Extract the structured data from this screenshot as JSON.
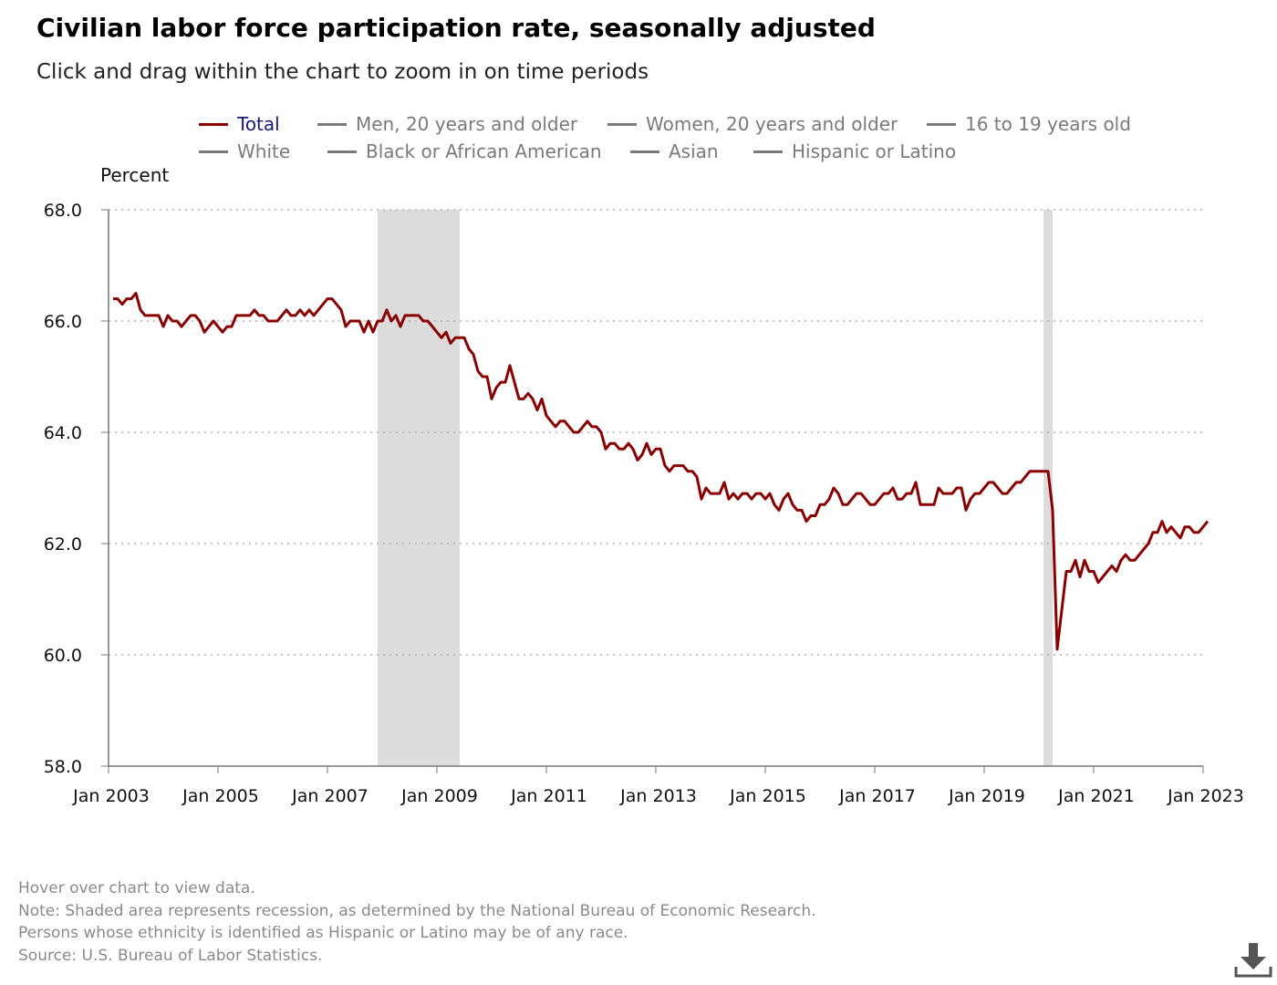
{
  "title": "Civilian labor force participation rate, seasonally adjusted",
  "subtitle": "Click and drag within the chart to zoom in on time periods",
  "legend": [
    {
      "label": "Total",
      "active": true
    },
    {
      "label": "Men, 20 years and older",
      "active": false
    },
    {
      "label": "Women, 20 years and older",
      "active": false
    },
    {
      "label": "16 to 19 years old",
      "active": false
    },
    {
      "label": "White",
      "active": false
    },
    {
      "label": "Black or African American",
      "active": false
    },
    {
      "label": "Asian",
      "active": false
    },
    {
      "label": "Hispanic or Latino",
      "active": false
    }
  ],
  "footer": {
    "line1": "Hover over chart to view data.",
    "line2": "Note: Shaded area represents recession, as determined by the National Bureau of Economic Research.",
    "line3": "Persons whose ethnicity is identified as Hispanic or Latino may be of any race.",
    "line4": "Source: U.S. Bureau of Labor Statistics."
  },
  "icons": {
    "download": "download-icon"
  },
  "colors": {
    "series": "#8b0000",
    "recession": "#dcdcdc",
    "grid": "#b0b0b0",
    "legend_inactive": "#7a7a7a",
    "legend_active_text": "#1a1a7a"
  },
  "chart_data": {
    "type": "line",
    "title": "Civilian labor force participation rate, seasonally adjusted",
    "ylabel": "Percent",
    "xlabel": "",
    "ylim": [
      58.0,
      68.0
    ],
    "yticks": [
      "58.0",
      "60.0",
      "62.0",
      "64.0",
      "66.0",
      "68.0"
    ],
    "xticks": [
      "Jan 2003",
      "Jan 2005",
      "Jan 2007",
      "Jan 2009",
      "Jan 2011",
      "Jan 2013",
      "Jan 2015",
      "Jan 2017",
      "Jan 2019",
      "Jan 2021",
      "Jan 2023"
    ],
    "x_start": "Jan 2003",
    "x_end": "Jan 2023",
    "grid": true,
    "legend_position": "top",
    "recessions": [
      {
        "start": "Dec 2007",
        "end": "Jun 2009"
      },
      {
        "start": "Feb 2020",
        "end": "Apr 2020"
      }
    ],
    "series": [
      {
        "name": "Total",
        "color": "#8b0000",
        "start": "Jan 2003",
        "frequency": "monthly",
        "values": [
          66.4,
          66.4,
          66.3,
          66.4,
          66.4,
          66.5,
          66.2,
          66.1,
          66.1,
          66.1,
          66.1,
          65.9,
          66.1,
          66.0,
          66.0,
          65.9,
          66.0,
          66.1,
          66.1,
          66.0,
          65.8,
          65.9,
          66.0,
          65.9,
          65.8,
          65.9,
          65.9,
          66.1,
          66.1,
          66.1,
          66.1,
          66.2,
          66.1,
          66.1,
          66.0,
          66.0,
          66.0,
          66.1,
          66.2,
          66.1,
          66.1,
          66.2,
          66.1,
          66.2,
          66.1,
          66.2,
          66.3,
          66.4,
          66.4,
          66.3,
          66.2,
          65.9,
          66.0,
          66.0,
          66.0,
          65.8,
          66.0,
          65.8,
          66.0,
          66.0,
          66.2,
          66.0,
          66.1,
          65.9,
          66.1,
          66.1,
          66.1,
          66.1,
          66.0,
          66.0,
          65.9,
          65.8,
          65.7,
          65.8,
          65.6,
          65.7,
          65.7,
          65.7,
          65.5,
          65.4,
          65.1,
          65.0,
          65.0,
          64.6,
          64.8,
          64.9,
          64.9,
          65.2,
          64.9,
          64.6,
          64.6,
          64.7,
          64.6,
          64.4,
          64.6,
          64.3,
          64.2,
          64.1,
          64.2,
          64.2,
          64.1,
          64.0,
          64.0,
          64.1,
          64.2,
          64.1,
          64.1,
          64.0,
          63.7,
          63.8,
          63.8,
          63.7,
          63.7,
          63.8,
          63.7,
          63.5,
          63.6,
          63.8,
          63.6,
          63.7,
          63.7,
          63.4,
          63.3,
          63.4,
          63.4,
          63.4,
          63.3,
          63.3,
          63.2,
          62.8,
          63.0,
          62.9,
          62.9,
          62.9,
          63.1,
          62.8,
          62.9,
          62.8,
          62.9,
          62.9,
          62.8,
          62.9,
          62.9,
          62.8,
          62.9,
          62.7,
          62.6,
          62.8,
          62.9,
          62.7,
          62.6,
          62.6,
          62.4,
          62.5,
          62.5,
          62.7,
          62.7,
          62.8,
          63.0,
          62.9,
          62.7,
          62.7,
          62.8,
          62.9,
          62.9,
          62.8,
          62.7,
          62.7,
          62.8,
          62.9,
          62.9,
          63.0,
          62.8,
          62.8,
          62.9,
          62.9,
          63.1,
          62.7,
          62.7,
          62.7,
          62.7,
          63.0,
          62.9,
          62.9,
          62.9,
          63.0,
          63.0,
          62.6,
          62.8,
          62.9,
          62.9,
          63.0,
          63.1,
          63.1,
          63.0,
          62.9,
          62.9,
          63.0,
          63.1,
          63.1,
          63.2,
          63.3,
          63.3,
          63.3,
          63.3,
          63.3,
          62.6,
          60.1,
          60.8,
          61.5,
          61.5,
          61.7,
          61.4,
          61.7,
          61.5,
          61.5,
          61.3,
          61.4,
          61.5,
          61.6,
          61.5,
          61.7,
          61.8,
          61.7,
          61.7,
          61.8,
          61.9,
          62.0,
          62.2,
          62.2,
          62.4,
          62.2,
          62.3,
          62.2,
          62.1,
          62.3,
          62.3,
          62.2,
          62.2,
          62.3,
          62.4
        ]
      }
    ]
  }
}
